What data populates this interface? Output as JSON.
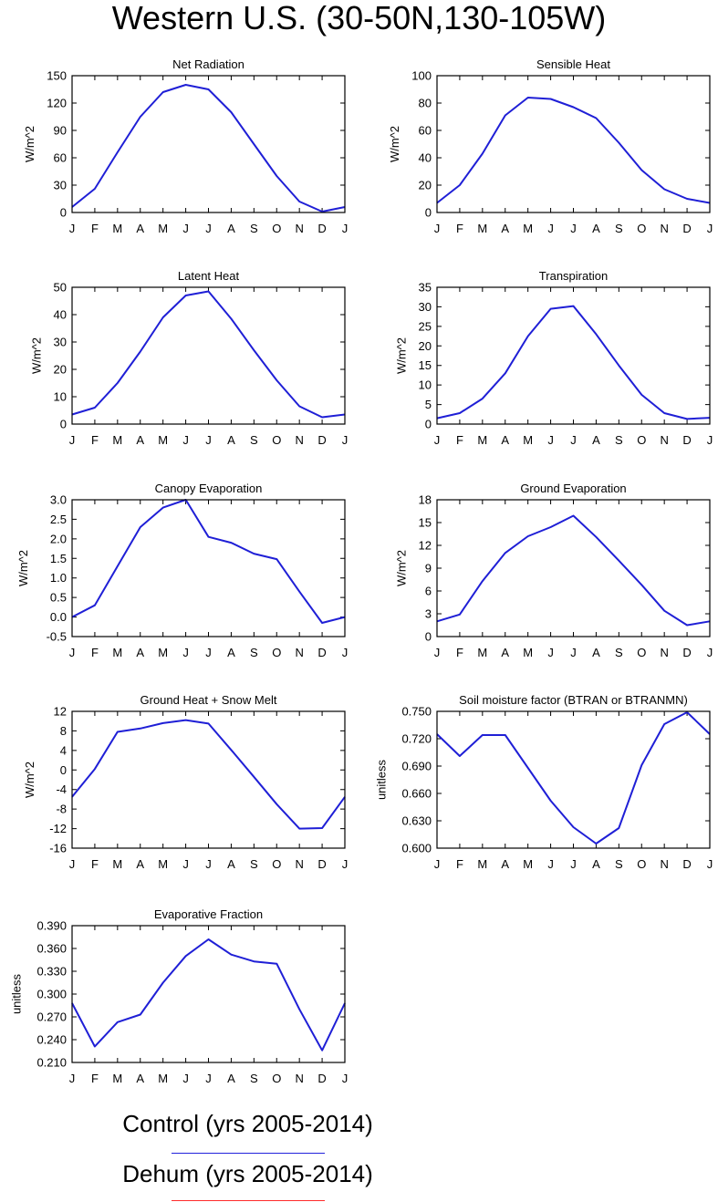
{
  "title": "Western U.S. (30-50N,130-105W)",
  "legend": [
    {
      "label": "Control (yrs 2005-2014)",
      "color": "#2222dd"
    },
    {
      "label": "Dehum (yrs 2005-2014)",
      "color": "#ff2a2a"
    }
  ],
  "line_color": "#1f1fd6",
  "chart_data": [
    {
      "type": "line",
      "title": "Net Radiation",
      "ylabel": "W/m^2",
      "categories": [
        "J",
        "F",
        "M",
        "A",
        "M",
        "J",
        "J",
        "A",
        "S",
        "O",
        "N",
        "D",
        "J"
      ],
      "ylim": [
        0,
        150
      ],
      "yticks": [
        "0",
        "30",
        "60",
        "90",
        "120",
        "150"
      ],
      "series": [
        {
          "values": [
            6,
            26,
            66,
            105,
            132,
            140,
            135,
            110,
            75,
            40,
            12,
            1,
            6
          ]
        }
      ]
    },
    {
      "type": "line",
      "title": "Sensible Heat",
      "ylabel": "W/m^2",
      "categories": [
        "J",
        "F",
        "M",
        "A",
        "M",
        "J",
        "J",
        "A",
        "S",
        "O",
        "N",
        "D",
        "J"
      ],
      "ylim": [
        0,
        100
      ],
      "yticks": [
        "0",
        "20",
        "40",
        "60",
        "80",
        "100"
      ],
      "series": [
        {
          "values": [
            7,
            20,
            43,
            71,
            84,
            83,
            77,
            69,
            51,
            31,
            17,
            10,
            7
          ]
        }
      ]
    },
    {
      "type": "line",
      "title": "Latent Heat",
      "ylabel": "W/m^2",
      "categories": [
        "J",
        "F",
        "M",
        "A",
        "M",
        "J",
        "J",
        "A",
        "S",
        "O",
        "N",
        "D",
        "J"
      ],
      "ylim": [
        0,
        50
      ],
      "yticks": [
        "0",
        "10",
        "20",
        "30",
        "40",
        "50"
      ],
      "series": [
        {
          "values": [
            3.5,
            6,
            15,
            26.5,
            39,
            47,
            48.5,
            38.5,
            27,
            16,
            6.5,
            2.5,
            3.5
          ]
        }
      ]
    },
    {
      "type": "line",
      "title": "Transpiration",
      "ylabel": "W/m^2",
      "categories": [
        "J",
        "F",
        "M",
        "A",
        "M",
        "J",
        "J",
        "A",
        "S",
        "O",
        "N",
        "D",
        "J"
      ],
      "ylim": [
        0,
        35
      ],
      "yticks": [
        "0",
        "5",
        "10",
        "15",
        "20",
        "25",
        "30",
        "35"
      ],
      "series": [
        {
          "values": [
            1.5,
            2.8,
            6.5,
            13,
            22.5,
            29.5,
            30.2,
            23,
            15,
            7.5,
            2.8,
            1.3,
            1.6
          ]
        }
      ]
    },
    {
      "type": "line",
      "title": "Canopy Evaporation",
      "ylabel": "W/m^2",
      "categories": [
        "J",
        "F",
        "M",
        "A",
        "M",
        "J",
        "J",
        "A",
        "S",
        "O",
        "N",
        "D",
        "J"
      ],
      "ylim": [
        -0.5,
        3.0
      ],
      "yticks": [
        "-0.5",
        "0.0",
        "0.5",
        "1.0",
        "1.5",
        "2.0",
        "2.5",
        "3.0"
      ],
      "series": [
        {
          "values": [
            0,
            0.3,
            1.3,
            2.3,
            2.8,
            3.0,
            2.05,
            1.9,
            1.62,
            1.48,
            0.65,
            -0.15,
            0
          ]
        }
      ]
    },
    {
      "type": "line",
      "title": "Ground Evaporation",
      "ylabel": "W/m^2",
      "categories": [
        "J",
        "F",
        "M",
        "A",
        "M",
        "J",
        "J",
        "A",
        "S",
        "O",
        "N",
        "D",
        "J"
      ],
      "ylim": [
        0,
        18
      ],
      "yticks": [
        "0",
        "3",
        "6",
        "9",
        "12",
        "15",
        "18"
      ],
      "series": [
        {
          "values": [
            2,
            2.9,
            7.3,
            11,
            13.2,
            14.4,
            15.9,
            13.1,
            10,
            6.8,
            3.4,
            1.5,
            2
          ]
        }
      ]
    },
    {
      "type": "line",
      "title": "Ground Heat + Snow Melt",
      "ylabel": "W/m^2",
      "categories": [
        "J",
        "F",
        "M",
        "A",
        "M",
        "J",
        "J",
        "A",
        "S",
        "O",
        "N",
        "D",
        "J"
      ],
      "ylim": [
        -16,
        12
      ],
      "yticks": [
        "-16",
        "-12",
        "-8",
        "-4",
        "0",
        "4",
        "8",
        "12"
      ],
      "series": [
        {
          "values": [
            -5.5,
            0.2,
            7.8,
            8.5,
            9.6,
            10.2,
            9.5,
            4.1,
            -1.4,
            -7,
            -12,
            -11.9,
            -5.5
          ]
        }
      ]
    },
    {
      "type": "line",
      "title": "Soil moisture factor (BTRAN or BTRANMN)",
      "ylabel": "unitless",
      "categories": [
        "J",
        "F",
        "M",
        "A",
        "M",
        "J",
        "J",
        "A",
        "S",
        "O",
        "N",
        "D",
        "J"
      ],
      "ylim": [
        0.6,
        0.75
      ],
      "yticks": [
        "0.600",
        "0.630",
        "0.660",
        "0.690",
        "0.720",
        "0.750"
      ],
      "series": [
        {
          "values": [
            0.725,
            0.701,
            0.724,
            0.724,
            0.688,
            0.652,
            0.623,
            0.605,
            0.622,
            0.691,
            0.736,
            0.749,
            0.725
          ]
        }
      ]
    },
    {
      "type": "line",
      "title": "Evaporative Fraction",
      "ylabel": "unitless",
      "categories": [
        "J",
        "F",
        "M",
        "A",
        "M",
        "J",
        "J",
        "A",
        "S",
        "O",
        "N",
        "D",
        "J"
      ],
      "ylim": [
        0.21,
        0.39
      ],
      "yticks": [
        "0.210",
        "0.240",
        "0.270",
        "0.300",
        "0.330",
        "0.360",
        "0.390"
      ],
      "series": [
        {
          "values": [
            0.288,
            0.231,
            0.263,
            0.273,
            0.315,
            0.35,
            0.372,
            0.352,
            0.343,
            0.34,
            0.28,
            0.226,
            0.288
          ]
        }
      ]
    }
  ]
}
